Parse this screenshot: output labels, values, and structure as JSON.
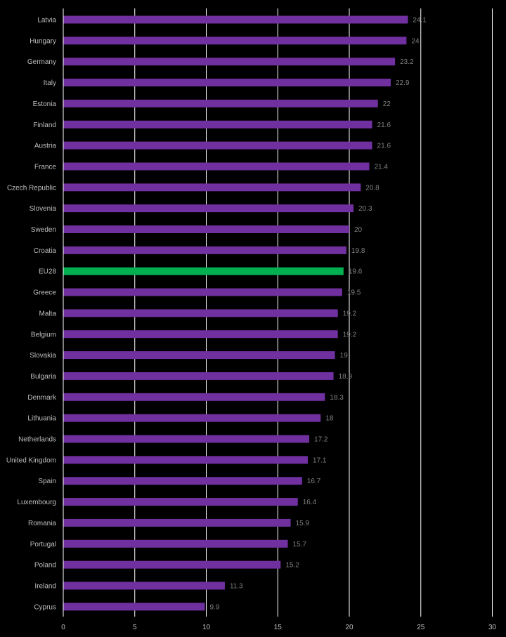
{
  "chart_data": {
    "type": "bar",
    "orientation": "horizontal",
    "categories": [
      "Latvia",
      "Hungary",
      "Germany",
      "Italy",
      "Estonia",
      "Finland",
      "Austria",
      "France",
      "Czech Republic",
      "Slovenia",
      "Sweden",
      "Croatia",
      "EU28",
      "Greece",
      "Malta",
      "Belgium",
      "Slovakia",
      "Bulgaria",
      "Denmark",
      "Lithuania",
      "Netherlands",
      "United Kingdom",
      "Spain",
      "Luxembourg",
      "Romania",
      "Portugal",
      "Poland",
      "Ireland",
      "Cyprus"
    ],
    "values": [
      24.1,
      24,
      23.2,
      22.9,
      22,
      21.6,
      21.6,
      21.4,
      20.8,
      20.3,
      20,
      19.8,
      19.6,
      19.5,
      19.2,
      19.2,
      19,
      18.9,
      18.3,
      18,
      17.2,
      17.1,
      16.7,
      16.4,
      15.9,
      15.7,
      15.2,
      11.3,
      9.9
    ],
    "value_labels": [
      "24.1",
      "24",
      "23.2",
      "22.9",
      "22",
      "21.6",
      "21.6",
      "21.4",
      "20.8",
      "20.3",
      "20",
      "19.8",
      "19.6",
      "19.5",
      "19.2",
      "19.2",
      "19",
      "18.9",
      "18.3",
      "18",
      "17.2",
      "17.1",
      "16.7",
      "16.4",
      "15.9",
      "15.7",
      "15.2",
      "11.3",
      "9.9"
    ],
    "xlim": [
      0,
      30
    ],
    "xticks": [
      "0",
      "5",
      "10",
      "15",
      "20",
      "25",
      "30"
    ],
    "grid": "vertical",
    "colors": {
      "bar": "#7030a0",
      "highlight": "#00b050",
      "background": "#000000",
      "grid": "#ffffff"
    },
    "highlight_category": "EU28",
    "title": "",
    "xlabel": "",
    "ylabel": ""
  }
}
